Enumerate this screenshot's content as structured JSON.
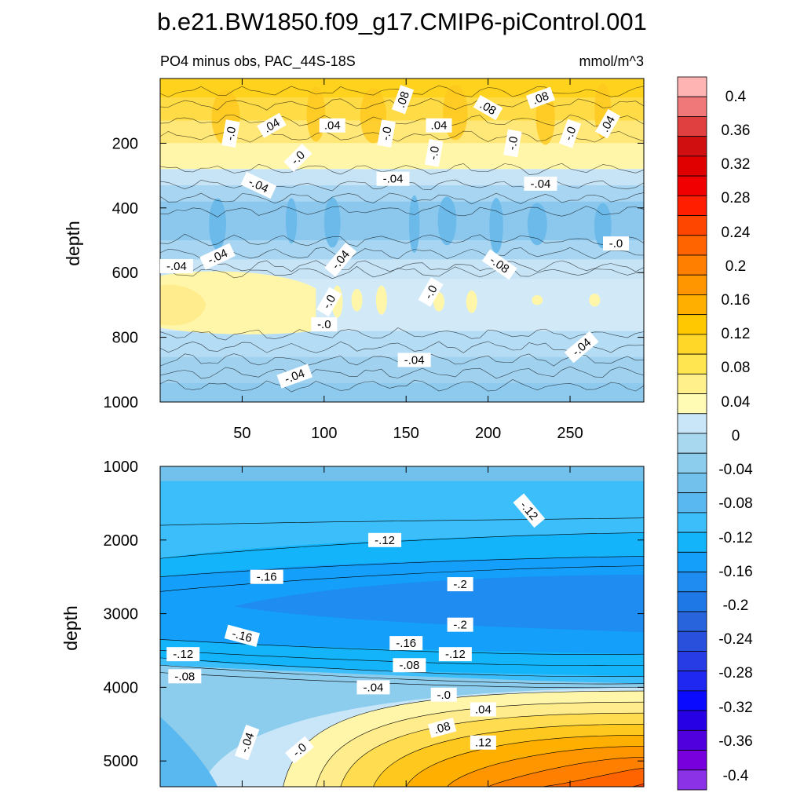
{
  "title": "b.e21.BW1850.f09_g17.CMIP6-piControl.001",
  "chart_data": [
    {
      "type": "heatmap",
      "panel": "upper",
      "subtitle_left": "PO4 minus obs, PAC_44S-18S",
      "subtitle_right": "mmol/m^3",
      "xlabel": "",
      "ylabel": "depth",
      "xlim": [
        0,
        295
      ],
      "ylim": [
        1000,
        0
      ],
      "xticks": [
        "50",
        "100",
        "150",
        "200",
        "250"
      ],
      "yticks": [
        "200",
        "400",
        "600",
        "800",
        "1000"
      ],
      "description": "depth profile of PO4 bias, positive (0 to 0.12) above ~300 m, negative (-0.04 to -0.12) from 300-560 m, positive (0 to 0.04) near 600-800 m in west, negative (-0.04 to -0.08) below 800 m",
      "depth_profile": [
        {
          "depth": 50,
          "value": 0.08
        },
        {
          "depth": 150,
          "value": 0.05
        },
        {
          "depth": 250,
          "value": 0.01
        },
        {
          "depth": 350,
          "value": -0.05
        },
        {
          "depth": 450,
          "value": -0.09
        },
        {
          "depth": 550,
          "value": -0.05
        },
        {
          "depth": 700,
          "value": -0.01
        },
        {
          "depth": 850,
          "value": -0.04
        },
        {
          "depth": 950,
          "value": -0.06
        }
      ],
      "contour_labels": [
        ".08",
        ".08",
        ".08",
        ".04",
        ".04",
        ".04",
        ".04",
        "-.0",
        "-.0",
        "-.0",
        "-.0",
        "-.0",
        "-.0",
        "-.04",
        "-.04",
        "-.04",
        "-.04",
        "-.04",
        "-.04",
        "-.08",
        "-.0",
        "-.0",
        "-.0",
        "-.0",
        "-.04",
        "-.04",
        "-.04",
        "-.04"
      ]
    },
    {
      "type": "heatmap",
      "panel": "lower",
      "xlabel": "",
      "ylabel": "depth",
      "xlim": [
        0,
        295
      ],
      "ylim": [
        1000,
        5350
      ],
      "yticks": [
        "1000",
        "2000",
        "3000",
        "4000",
        "5000"
      ],
      "description": "PO4 bias minimum (-0.2) near 2700-3000 m in the east, positive bias (up to 0.12+) in the deep eastern basin below 4200 m",
      "contour_labels": [
        "-.12",
        "-.12",
        "-.16",
        "-.2",
        "-.2",
        "-.16",
        "-.16",
        "-.12",
        "-.12",
        "-.08",
        "-.08",
        "-.04",
        "-.0",
        ".04",
        ".08",
        ".12",
        "-.04",
        "-.0"
      ]
    }
  ],
  "colorbar": {
    "levels": [
      "0.4",
      "0.36",
      "0.32",
      "0.28",
      "0.24",
      "0.2",
      "0.16",
      "0.12",
      "0.08",
      "0.04",
      "0",
      "-0.04",
      "-0.08",
      "-0.12",
      "-0.16",
      "-0.2",
      "-0.24",
      "-0.28",
      "-0.32",
      "-0.36",
      "-0.4"
    ],
    "colors": [
      "#FFB4B4",
      "#F07878",
      "#E04040",
      "#D01010",
      "#E00000",
      "#F00000",
      "#FF1E00",
      "#FF4600",
      "#FF6400",
      "#FF7F00",
      "#FF9600",
      "#FFAF00",
      "#FFC800",
      "#FFD728",
      "#FFE650",
      "#FFF08C",
      "#FFFAB4",
      "#C8E6F8",
      "#A8D8F0",
      "#8CCCEC",
      "#72C0EC",
      "#5AB8F0",
      "#3CBEFA",
      "#14B4FA",
      "#14A0FA",
      "#1E8CF0",
      "#1E78E6",
      "#2864DC",
      "#2850DC",
      "#283CE6",
      "#1E28F0",
      "#0A0AFF",
      "#2800E6",
      "#5000DC",
      "#7800DC",
      "#8C32E6"
    ]
  }
}
